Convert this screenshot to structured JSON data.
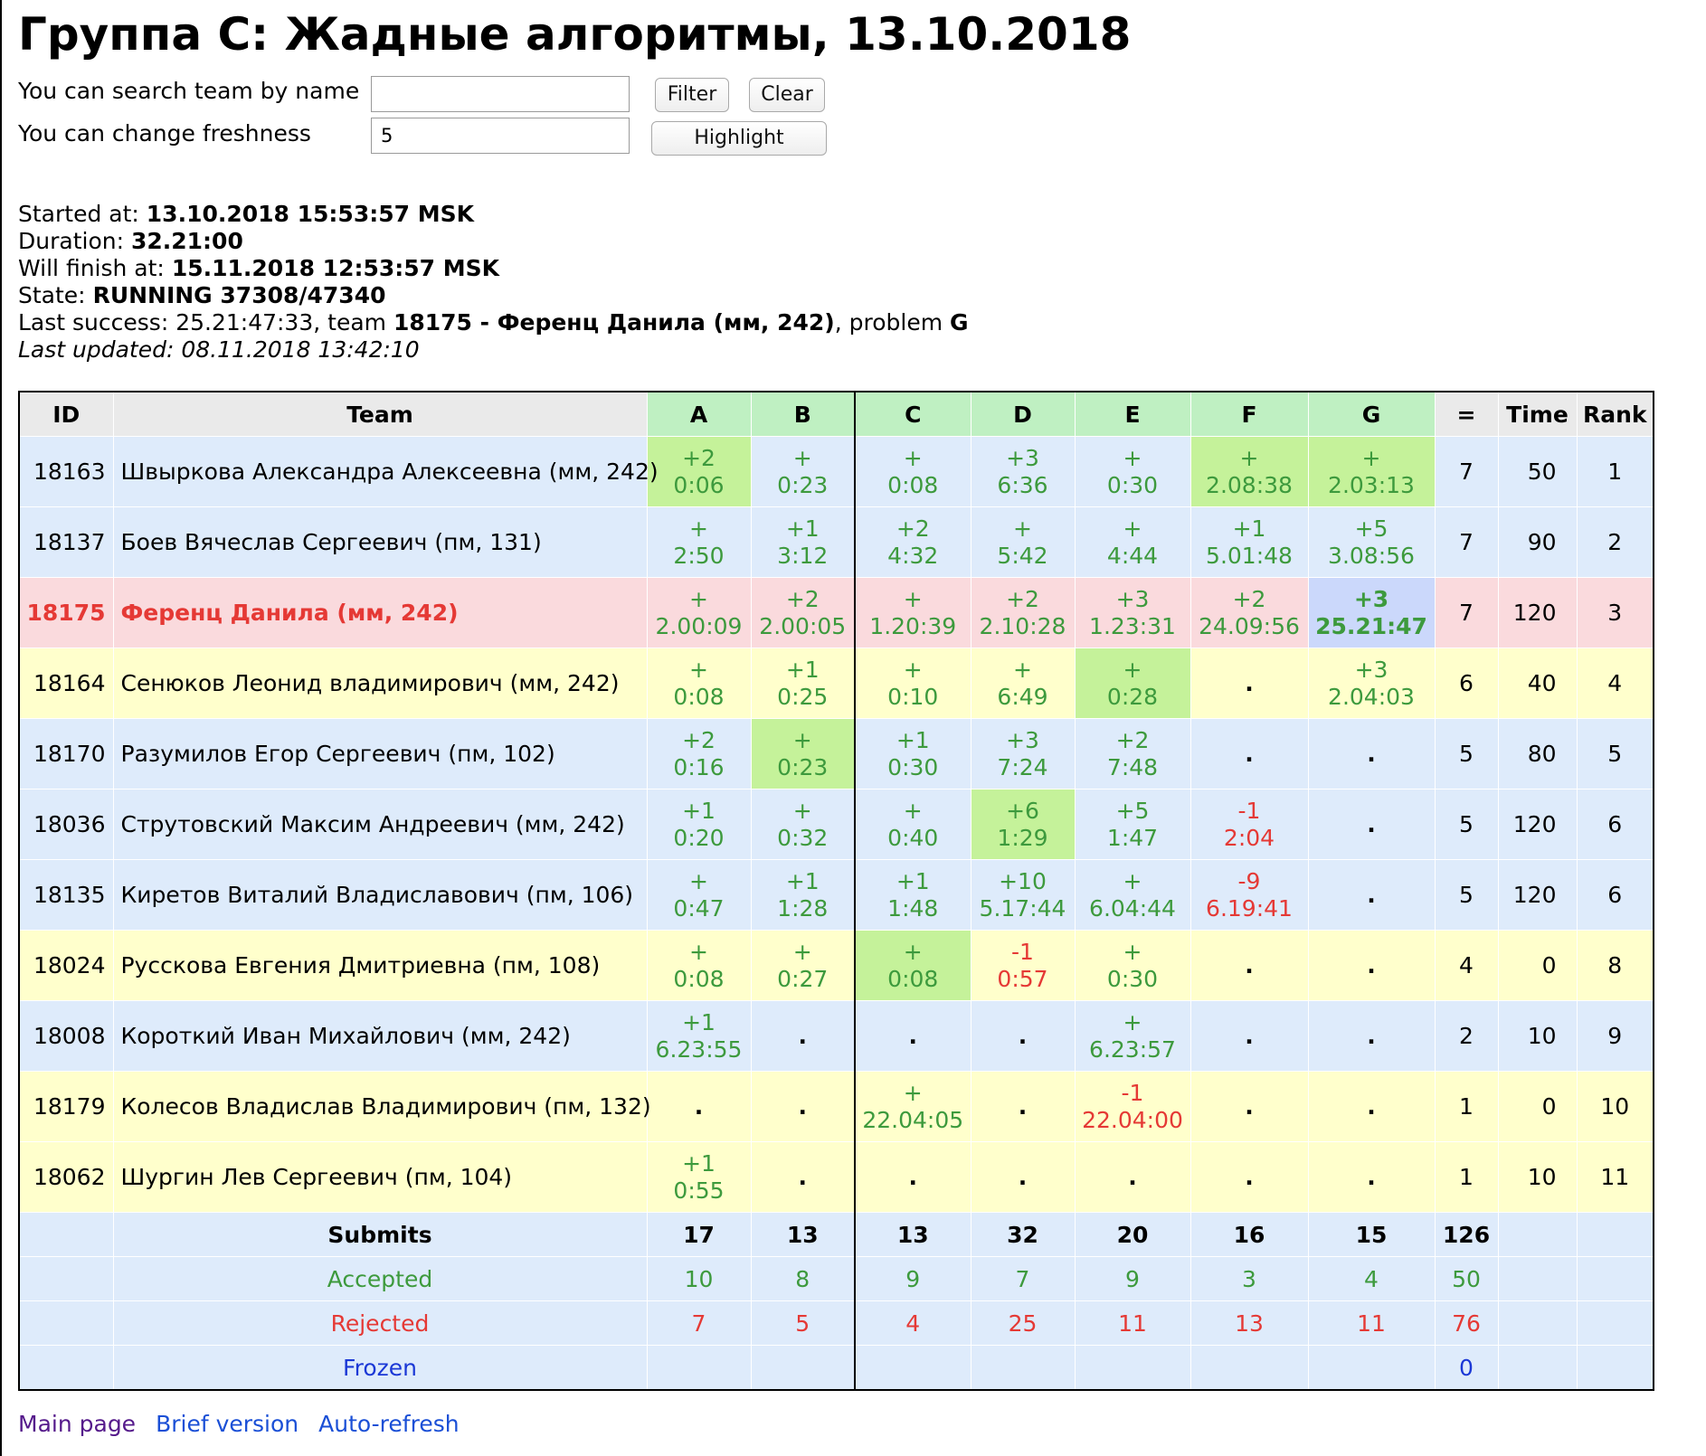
{
  "title": "Группа C: Жадные алгоритмы, 13.10.2018",
  "controls": {
    "search_label": "You can search team by name",
    "search_value": "",
    "filter_label": "Filter",
    "clear_label": "Clear",
    "freshness_label": "You can change freshness",
    "freshness_value": "5",
    "highlight_label": "Highlight"
  },
  "info": {
    "started_label": "Started at:",
    "started_value": "13.10.2018 15:53:57 MSK",
    "duration_label": "Duration:",
    "duration_value": "32.21:00",
    "finish_label": "Will finish at:",
    "finish_value": "15.11.2018 12:53:57 MSK",
    "state_label": "State:",
    "state_value": "RUNNING 37308/47340",
    "last_success_label": "Last success:",
    "last_success_time": "25.21:47:33",
    "last_success_team_label": ", team",
    "last_success_team": "18175 - Ференц Данила (мм, 242)",
    "last_success_problem_label": ", problem",
    "last_success_problem": "G",
    "last_updated": "Last updated: 08.11.2018 13:42:10"
  },
  "table": {
    "headers": [
      "ID",
      "Team",
      "A",
      "B",
      "C",
      "D",
      "E",
      "F",
      "G",
      "=",
      "Time",
      "Rank"
    ],
    "rows": [
      {
        "id": "18163",
        "team": "Швыркова Александра Алексеевна (мм, 242)",
        "bg": "blue",
        "cells": [
          [
            "+2",
            "0:06",
            "first"
          ],
          [
            "+",
            "0:23",
            ""
          ],
          [
            "+",
            "0:08",
            ""
          ],
          [
            "+3",
            "6:36",
            ""
          ],
          [
            "+",
            "0:30",
            ""
          ],
          [
            "+",
            "2.08:38",
            "first"
          ],
          [
            "+",
            "2.03:13",
            "first"
          ]
        ],
        "solved": "7",
        "time": "50",
        "rank": "1"
      },
      {
        "id": "18137",
        "team": "Боев Вячеслав Сергеевич (пм, 131)",
        "bg": "blue",
        "cells": [
          [
            "+",
            "2:50",
            ""
          ],
          [
            "+1",
            "3:12",
            ""
          ],
          [
            "+2",
            "4:32",
            ""
          ],
          [
            "+",
            "5:42",
            ""
          ],
          [
            "+",
            "4:44",
            ""
          ],
          [
            "+1",
            "5.01:48",
            ""
          ],
          [
            "+5",
            "3.08:56",
            ""
          ]
        ],
        "solved": "7",
        "time": "90",
        "rank": "2"
      },
      {
        "id": "18175",
        "team": "Ференц Данила (мм, 242)",
        "bg": "red",
        "cells": [
          [
            "+",
            "2.00:09",
            ""
          ],
          [
            "+2",
            "2.00:05",
            ""
          ],
          [
            "+",
            "1.20:39",
            ""
          ],
          [
            "+2",
            "2.10:28",
            ""
          ],
          [
            "+3",
            "1.23:31",
            ""
          ],
          [
            "+2",
            "24.09:56",
            ""
          ],
          [
            "+3",
            "25.21:47",
            "last"
          ]
        ],
        "solved": "7",
        "time": "120",
        "rank": "3"
      },
      {
        "id": "18164",
        "team": "Сенюков Леонид владимирович (мм, 242)",
        "bg": "yellow",
        "cells": [
          [
            "+",
            "0:08",
            ""
          ],
          [
            "+1",
            "0:25",
            ""
          ],
          [
            "+",
            "0:10",
            ""
          ],
          [
            "+",
            "6:49",
            ""
          ],
          [
            "+",
            "0:28",
            "first"
          ],
          [
            ".",
            "",
            ""
          ],
          [
            "+3",
            "2.04:03",
            ""
          ]
        ],
        "solved": "6",
        "time": "40",
        "rank": "4"
      },
      {
        "id": "18170",
        "team": "Разумилов Егор Сергеевич (пм, 102)",
        "bg": "blue",
        "cells": [
          [
            "+2",
            "0:16",
            ""
          ],
          [
            "+",
            "0:23",
            "first"
          ],
          [
            "+1",
            "0:30",
            ""
          ],
          [
            "+3",
            "7:24",
            ""
          ],
          [
            "+2",
            "7:48",
            ""
          ],
          [
            ".",
            "",
            ""
          ],
          [
            ".",
            "",
            ""
          ]
        ],
        "solved": "5",
        "time": "80",
        "rank": "5"
      },
      {
        "id": "18036",
        "team": "Струтовский Максим Андреевич (мм, 242)",
        "bg": "blue",
        "cells": [
          [
            "+1",
            "0:20",
            ""
          ],
          [
            "+",
            "0:32",
            ""
          ],
          [
            "+",
            "0:40",
            ""
          ],
          [
            "+6",
            "1:29",
            "first"
          ],
          [
            "+5",
            "1:47",
            ""
          ],
          [
            "-1",
            "2:04",
            ""
          ],
          [
            ".",
            "",
            ""
          ]
        ],
        "solved": "5",
        "time": "120",
        "rank": "6"
      },
      {
        "id": "18135",
        "team": "Киретов Виталий Владиславович (пм, 106)",
        "bg": "blue",
        "cells": [
          [
            "+",
            "0:47",
            ""
          ],
          [
            "+1",
            "1:28",
            ""
          ],
          [
            "+1",
            "1:48",
            ""
          ],
          [
            "+10",
            "5.17:44",
            ""
          ],
          [
            "+",
            "6.04:44",
            ""
          ],
          [
            "-9",
            "6.19:41",
            ""
          ],
          [
            ".",
            "",
            ""
          ]
        ],
        "solved": "5",
        "time": "120",
        "rank": "6"
      },
      {
        "id": "18024",
        "team": "Русскова Евгения Дмитриевна (пм, 108)",
        "bg": "yellow",
        "cells": [
          [
            "+",
            "0:08",
            ""
          ],
          [
            "+",
            "0:27",
            ""
          ],
          [
            "+",
            "0:08",
            "first"
          ],
          [
            "-1",
            "0:57",
            ""
          ],
          [
            "+",
            "0:30",
            ""
          ],
          [
            ".",
            "",
            ""
          ],
          [
            ".",
            "",
            ""
          ]
        ],
        "solved": "4",
        "time": "0",
        "rank": "8"
      },
      {
        "id": "18008",
        "team": "Короткий Иван Михайлович (мм, 242)",
        "bg": "blue",
        "cells": [
          [
            "+1",
            "6.23:55",
            ""
          ],
          [
            ".",
            "",
            ""
          ],
          [
            ".",
            "",
            ""
          ],
          [
            ".",
            "",
            ""
          ],
          [
            "+",
            "6.23:57",
            ""
          ],
          [
            ".",
            "",
            ""
          ],
          [
            ".",
            "",
            ""
          ]
        ],
        "solved": "2",
        "time": "10",
        "rank": "9"
      },
      {
        "id": "18179",
        "team": "Колесов Владислав Владимирович (пм, 132)",
        "bg": "yellow",
        "cells": [
          [
            ".",
            "",
            ""
          ],
          [
            ".",
            "",
            ""
          ],
          [
            "+",
            "22.04:05",
            ""
          ],
          [
            ".",
            "",
            ""
          ],
          [
            "-1",
            "22.04:00",
            ""
          ],
          [
            ".",
            "",
            ""
          ],
          [
            ".",
            "",
            ""
          ]
        ],
        "solved": "1",
        "time": "0",
        "rank": "10"
      },
      {
        "id": "18062",
        "team": "Шургин Лев Сергеевич (пм, 104)",
        "bg": "yellow",
        "cells": [
          [
            "+1",
            "0:55",
            ""
          ],
          [
            ".",
            "",
            ""
          ],
          [
            ".",
            "",
            ""
          ],
          [
            ".",
            "",
            ""
          ],
          [
            ".",
            "",
            ""
          ],
          [
            ".",
            "",
            ""
          ],
          [
            ".",
            "",
            ""
          ]
        ],
        "solved": "1",
        "time": "10",
        "rank": "11"
      }
    ],
    "stats": [
      {
        "key": "submits",
        "label": "Submits",
        "values": [
          "17",
          "13",
          "13",
          "32",
          "20",
          "16",
          "15"
        ],
        "total": "126"
      },
      {
        "key": "accepted",
        "label": "Accepted",
        "values": [
          "10",
          "8",
          "9",
          "7",
          "9",
          "3",
          "4"
        ],
        "total": "50"
      },
      {
        "key": "rejected",
        "label": "Rejected",
        "values": [
          "7",
          "5",
          "4",
          "25",
          "11",
          "13",
          "11"
        ],
        "total": "76"
      },
      {
        "key": "frozen",
        "label": "Frozen",
        "values": [
          "",
          "",
          "",
          "",
          "",
          "",
          ""
        ],
        "total": "0"
      }
    ]
  },
  "footer": {
    "links": [
      {
        "label": "Main page",
        "style": "visited"
      },
      {
        "label": "Brief version",
        "style": "link"
      },
      {
        "label": "Auto-refresh",
        "style": "link"
      }
    ]
  }
}
